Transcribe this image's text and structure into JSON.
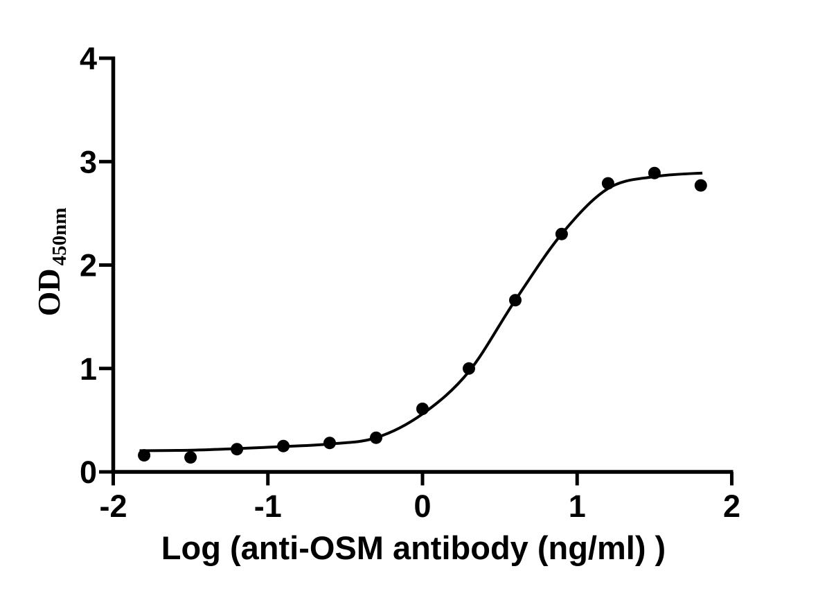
{
  "figure": {
    "background": "#ffffff",
    "ink_color": "#000000"
  },
  "chart_data": {
    "type": "scatter",
    "subtype": "sigmoidal dose-response binding curve with fitted 4PL sigmoid",
    "title": "",
    "xlabel": "Log (anti-OSM antibody (ng/ml) )",
    "ylabel_main": "OD",
    "ylabel_subscript": "450nm",
    "xlim": [
      -2,
      2
    ],
    "ylim": [
      0,
      4
    ],
    "xticks": [
      "-2",
      "-1",
      "0",
      "1",
      "2"
    ],
    "xtick_values": [
      -2,
      -1,
      0,
      1,
      2
    ],
    "yticks": [
      "0",
      "1",
      "2",
      "3",
      "4"
    ],
    "ytick_values": [
      0,
      1,
      2,
      3,
      4
    ],
    "grid": false,
    "legend": false,
    "series": [
      {
        "name": "anti-OSM antibody",
        "marker": "filled-circle",
        "color": "#000000",
        "points": [
          [
            -1.8,
            0.16
          ],
          [
            -1.5,
            0.14
          ],
          [
            -1.2,
            0.22
          ],
          [
            -0.9,
            0.25
          ],
          [
            -0.6,
            0.28
          ],
          [
            -0.3,
            0.33
          ],
          [
            0.0,
            0.61
          ],
          [
            0.3,
            1.0
          ],
          [
            0.6,
            1.66
          ],
          [
            0.9,
            2.3
          ],
          [
            1.2,
            2.79
          ],
          [
            1.5,
            2.89
          ],
          [
            1.8,
            2.77
          ]
        ]
      }
    ],
    "fit_curve": {
      "shape": "4-parameter logistic sigmoid",
      "color": "#000000",
      "anchors": [
        [
          -1.83,
          0.205
        ],
        [
          -1.5,
          0.21
        ],
        [
          -1.2,
          0.225
        ],
        [
          -0.9,
          0.245
        ],
        [
          -0.6,
          0.27
        ],
        [
          -0.3,
          0.33
        ],
        [
          0.0,
          0.56
        ],
        [
          0.3,
          0.97
        ],
        [
          0.6,
          1.66
        ],
        [
          0.9,
          2.3
        ],
        [
          1.2,
          2.74
        ],
        [
          1.5,
          2.855
        ],
        [
          1.81,
          2.89
        ]
      ]
    }
  }
}
